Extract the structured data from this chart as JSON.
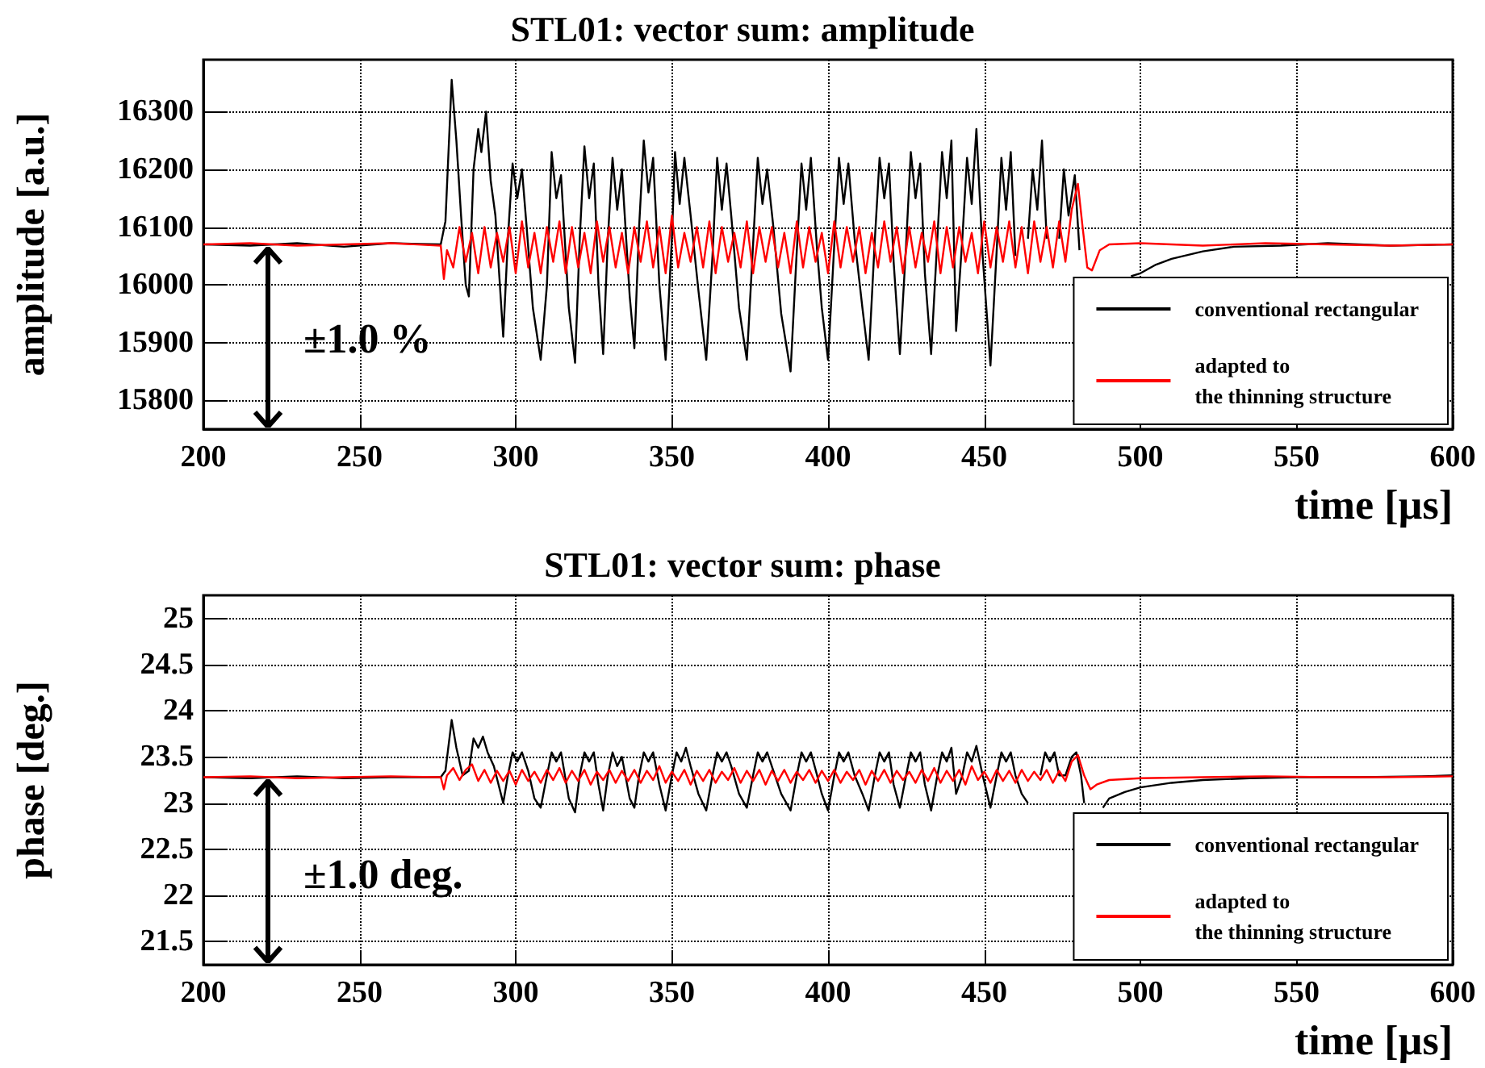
{
  "chart_data": [
    {
      "type": "line",
      "title": "STL01: vector sum: amplitude",
      "xlabel": "time [µs]",
      "ylabel": "amplitude [a.u.]",
      "xlim": [
        200,
        600
      ],
      "xticks": [
        200,
        250,
        300,
        350,
        400,
        450,
        500,
        550,
        600
      ],
      "ylim": [
        15750,
        16390
      ],
      "yticks": [
        15800,
        15900,
        16000,
        16100,
        16200,
        16300
      ],
      "grid": true,
      "legend": "bottom right",
      "annotations": [
        "±1.0 %"
      ],
      "series": [
        {
          "name": "conventional rectangular",
          "color": "#000000",
          "x": [
            200,
            215,
            230,
            245,
            260,
            276,
            277.5,
            279.5,
            281,
            282.5,
            284,
            285,
            286.5,
            288,
            289,
            290.5,
            292,
            293.5,
            296,
            297.5,
            299,
            300.5,
            302,
            303.5,
            305.5,
            308,
            310,
            311.5,
            313,
            314.5,
            317,
            319,
            320.5,
            322,
            323.5,
            325,
            326.5,
            328,
            329.5,
            331,
            332.5,
            334,
            336.5,
            338,
            339.5,
            341,
            342.5,
            344,
            346,
            348,
            350,
            351,
            352.5,
            354,
            356,
            358.5,
            361,
            363,
            364.5,
            366,
            367.5,
            369,
            371.5,
            374,
            376,
            377.5,
            379,
            380.5,
            382.5,
            385,
            388,
            390,
            391.5,
            393,
            394.5,
            396.5,
            398,
            400,
            402,
            403.5,
            405,
            406.5,
            408.5,
            411,
            413,
            415,
            416.5,
            418,
            419.5,
            421,
            423,
            425,
            426.5,
            428,
            429.5,
            431,
            433,
            435,
            436.5,
            438,
            439.5,
            441,
            443,
            444.5,
            446,
            447.5,
            449.5,
            452,
            454,
            455.5,
            457,
            458.5,
            460,
            462,
            464,
            465.5,
            467,
            468.5,
            470,
            472,
            474,
            475.5,
            477,
            479,
            480.5,
            482,
            497,
            500,
            505,
            510,
            520,
            530,
            545,
            560,
            580,
            600
          ],
          "values": [
            16070,
            16068,
            16072,
            16066,
            16072,
            16070,
            16110,
            16355,
            16250,
            16120,
            16000,
            15980,
            16200,
            16270,
            16230,
            16300,
            16180,
            16120,
            15910,
            16080,
            16210,
            16150,
            16200,
            16100,
            15960,
            15870,
            16000,
            16230,
            16150,
            16190,
            15960,
            15865,
            16080,
            16240,
            16150,
            16210,
            16000,
            15880,
            16080,
            16220,
            16130,
            16200,
            15980,
            15890,
            16100,
            16250,
            16160,
            16220,
            16000,
            15870,
            16080,
            16230,
            16140,
            16220,
            16120,
            15990,
            15870,
            16050,
            16220,
            16130,
            16210,
            16120,
            15960,
            15870,
            16070,
            16220,
            16140,
            16200,
            16100,
            15950,
            15850,
            16060,
            16210,
            16130,
            16220,
            16060,
            15960,
            15870,
            16070,
            16220,
            16140,
            16210,
            16080,
            15960,
            15870,
            16080,
            16220,
            16150,
            16210,
            16040,
            15880,
            16070,
            16230,
            16150,
            16210,
            16020,
            15880,
            16080,
            16230,
            16150,
            16250,
            15920,
            16080,
            16220,
            16140,
            16270,
            16050,
            15860,
            16060,
            16220,
            16130,
            16230,
            16050,
            null,
            16080,
            16200,
            16130,
            16250,
            16080,
            null,
            16080,
            16200,
            16120,
            16190,
            16060,
            null,
            16015,
            16020,
            16035,
            16045,
            16058,
            16066,
            16068,
            16072,
            16068,
            16070
          ]
        },
        {
          "name": "adapted to\nthe thinning structure",
          "color": "#ff0000",
          "x": [
            200,
            215,
            230,
            245,
            260,
            276,
            277,
            278,
            280,
            282,
            284,
            286,
            288,
            290,
            292,
            294,
            296,
            298,
            300,
            302,
            304,
            306,
            308,
            310,
            312,
            314,
            316,
            318,
            320,
            322,
            324,
            326,
            328,
            330,
            332,
            334,
            336,
            338,
            340,
            342,
            344,
            346,
            348,
            350,
            352,
            354,
            356,
            358,
            360,
            362,
            364,
            366,
            368,
            370,
            372,
            374,
            376,
            378,
            380,
            382,
            384,
            386,
            388,
            390,
            392,
            394,
            396,
            398,
            400,
            402,
            404,
            406,
            408,
            410,
            412,
            414,
            416,
            418,
            420,
            422,
            424,
            426,
            428,
            430,
            432,
            434,
            436,
            438,
            440,
            442,
            444,
            446,
            448,
            450,
            452,
            454,
            456,
            458,
            460,
            462,
            464,
            466,
            468,
            470,
            472,
            474,
            476,
            478,
            480,
            481.5,
            483,
            484.5,
            487,
            490,
            500,
            520,
            540,
            560,
            580,
            600
          ],
          "values": [
            16070,
            16072,
            16068,
            16070,
            16072,
            16068,
            16010,
            16060,
            16030,
            16100,
            16040,
            16090,
            16020,
            16100,
            16030,
            16090,
            16040,
            16100,
            16020,
            16110,
            16030,
            16090,
            16020,
            16100,
            16040,
            16110,
            16020,
            16100,
            16030,
            16090,
            16020,
            16110,
            16040,
            16100,
            16030,
            16090,
            16020,
            16100,
            16040,
            16110,
            16030,
            16100,
            16020,
            16120,
            16030,
            16090,
            16040,
            16100,
            16030,
            16110,
            16020,
            16100,
            16040,
            16090,
            16030,
            16110,
            16020,
            16100,
            16040,
            16100,
            16030,
            16090,
            16020,
            16110,
            16030,
            16100,
            16040,
            16090,
            16020,
            16110,
            16030,
            16100,
            16040,
            16100,
            16020,
            16090,
            16030,
            16110,
            16040,
            16100,
            16020,
            16100,
            16030,
            16090,
            16040,
            16110,
            16020,
            16100,
            16030,
            16100,
            16040,
            16090,
            16020,
            16110,
            16030,
            16100,
            16040,
            16110,
            16030,
            16100,
            16020,
            16110,
            16040,
            16100,
            16030,
            16110,
            16040,
            16130,
            16175,
            16100,
            16030,
            16025,
            16060,
            16070,
            16072,
            16068,
            16072,
            16070,
            16068,
            16070
          ]
        }
      ]
    },
    {
      "type": "line",
      "title": "STL01: vector sum: phase",
      "xlabel": "time [µs]",
      "ylabel": "phase [deg.]",
      "xlim": [
        200,
        600
      ],
      "xticks": [
        200,
        250,
        300,
        350,
        400,
        450,
        500,
        550,
        600
      ],
      "ylim": [
        21.25,
        25.25
      ],
      "yticks": [
        21.5,
        22,
        22.5,
        23,
        23.5,
        24,
        24.5,
        25
      ],
      "grid": true,
      "legend": "bottom right",
      "annotations": [
        "±1.0 deg."
      ],
      "series": [
        {
          "name": "conventional rectangular",
          "color": "#000000",
          "x": [
            200,
            215,
            230,
            245,
            260,
            276,
            277.5,
            279.5,
            281,
            283,
            285,
            286.5,
            288,
            289.5,
            291,
            293,
            296,
            297.5,
            299,
            300.5,
            302,
            304,
            306,
            308,
            310,
            311.5,
            313,
            314.5,
            317,
            319,
            320.5,
            322,
            323.5,
            325,
            326.5,
            328,
            329.5,
            331,
            332.5,
            334,
            336.5,
            338,
            339.5,
            341,
            342.5,
            344,
            346,
            348,
            350,
            351.5,
            353,
            354.5,
            356,
            358.5,
            361,
            363,
            364.5,
            366,
            367.5,
            369,
            371.5,
            374,
            376,
            377.5,
            379,
            380.5,
            382.5,
            385,
            388,
            390,
            391.5,
            393,
            394.5,
            396.5,
            398,
            400,
            402,
            403.5,
            405,
            406.5,
            408.5,
            411,
            413,
            415,
            416.5,
            418,
            419.5,
            421,
            423,
            425,
            426.5,
            428,
            429.5,
            431,
            433,
            435,
            436.5,
            438,
            439.5,
            441,
            443,
            444.5,
            446,
            447.5,
            449.5,
            452,
            454,
            455.5,
            457,
            458.5,
            460,
            462,
            464,
            466,
            468,
            469.5,
            471,
            472.5,
            474,
            476,
            478,
            479.5,
            481,
            482,
            484,
            488,
            490,
            495,
            500,
            510,
            520,
            535,
            550,
            570,
            590,
            600
          ],
          "values": [
            23.28,
            23.27,
            23.29,
            23.27,
            23.28,
            23.28,
            23.35,
            23.9,
            23.6,
            23.3,
            23.35,
            23.7,
            23.6,
            23.72,
            23.55,
            23.4,
            23.0,
            23.3,
            23.55,
            23.45,
            23.55,
            23.35,
            23.05,
            22.95,
            23.3,
            23.55,
            23.45,
            23.55,
            23.05,
            22.9,
            23.3,
            23.55,
            23.45,
            23.55,
            23.2,
            22.92,
            23.3,
            23.55,
            23.4,
            23.5,
            23.05,
            22.95,
            23.3,
            23.55,
            23.45,
            23.55,
            23.2,
            22.92,
            23.3,
            23.55,
            23.45,
            23.6,
            23.4,
            23.1,
            22.92,
            23.3,
            23.55,
            23.45,
            23.55,
            23.4,
            23.1,
            22.95,
            23.3,
            23.55,
            23.45,
            23.55,
            23.35,
            23.1,
            22.92,
            23.3,
            23.55,
            23.45,
            23.55,
            23.3,
            23.1,
            22.92,
            23.3,
            23.55,
            23.45,
            23.55,
            23.3,
            23.1,
            22.92,
            23.3,
            23.55,
            23.45,
            23.55,
            23.2,
            22.95,
            23.3,
            23.55,
            23.45,
            23.55,
            23.2,
            22.92,
            23.3,
            23.55,
            23.45,
            23.6,
            23.1,
            23.3,
            23.55,
            23.45,
            23.62,
            23.3,
            22.95,
            23.3,
            23.55,
            23.45,
            23.55,
            23.3,
            23.1,
            23.0,
            null,
            23.3,
            23.55,
            23.45,
            23.55,
            23.3,
            23.3,
            23.5,
            23.55,
            23.3,
            23.0,
            null,
            22.95,
            23.05,
            23.12,
            23.17,
            23.22,
            23.25,
            23.27,
            23.28,
            23.28,
            23.29,
            23.3
          ]
        },
        {
          "name": "adapted to\nthe thinning structure",
          "color": "#ff0000",
          "x": [
            200,
            215,
            230,
            245,
            260,
            276,
            277,
            278,
            280,
            282,
            284,
            286,
            288,
            290,
            292,
            294,
            296,
            298,
            300,
            302,
            304,
            306,
            308,
            310,
            312,
            314,
            316,
            318,
            320,
            322,
            324,
            326,
            328,
            330,
            332,
            334,
            336,
            338,
            340,
            342,
            344,
            346,
            348,
            350,
            352,
            354,
            356,
            358,
            360,
            362,
            364,
            366,
            368,
            370,
            372,
            374,
            376,
            378,
            380,
            382,
            384,
            386,
            388,
            390,
            392,
            394,
            396,
            398,
            400,
            402,
            404,
            406,
            408,
            410,
            412,
            414,
            416,
            418,
            420,
            422,
            424,
            426,
            428,
            430,
            432,
            434,
            436,
            438,
            440,
            442,
            444,
            446,
            448,
            450,
            452,
            454,
            456,
            458,
            460,
            462,
            464,
            466,
            468,
            470,
            472,
            474,
            476,
            478,
            480,
            482,
            484,
            486,
            490,
            500,
            520,
            540,
            560,
            580,
            600
          ],
          "values": [
            23.28,
            23.29,
            23.27,
            23.28,
            23.29,
            23.28,
            23.15,
            23.3,
            23.38,
            23.25,
            23.36,
            23.42,
            23.24,
            23.36,
            23.22,
            23.35,
            23.24,
            23.35,
            23.2,
            23.36,
            23.24,
            23.34,
            23.22,
            23.36,
            23.25,
            23.38,
            23.22,
            23.35,
            23.24,
            23.36,
            23.2,
            23.34,
            23.25,
            23.36,
            23.22,
            23.35,
            23.24,
            23.36,
            23.22,
            23.35,
            23.25,
            23.4,
            23.22,
            23.34,
            23.24,
            23.36,
            23.2,
            23.35,
            23.24,
            23.36,
            23.22,
            23.34,
            23.25,
            23.38,
            23.22,
            23.35,
            23.24,
            23.36,
            23.2,
            23.35,
            23.24,
            23.36,
            23.22,
            23.34,
            23.25,
            23.36,
            23.22,
            23.35,
            23.24,
            23.36,
            23.22,
            23.34,
            23.25,
            23.36,
            23.2,
            23.35,
            23.24,
            23.36,
            23.22,
            23.35,
            23.25,
            23.34,
            23.22,
            23.36,
            23.24,
            23.38,
            23.22,
            23.35,
            23.24,
            23.36,
            23.2,
            23.4,
            23.25,
            23.34,
            23.22,
            23.36,
            23.24,
            23.35,
            23.22,
            23.36,
            23.24,
            23.34,
            23.25,
            23.36,
            23.22,
            23.35,
            23.24,
            23.45,
            23.52,
            23.3,
            23.15,
            23.2,
            23.25,
            23.27,
            23.28,
            23.29,
            23.28,
            23.28,
            23.29
          ]
        }
      ]
    }
  ]
}
